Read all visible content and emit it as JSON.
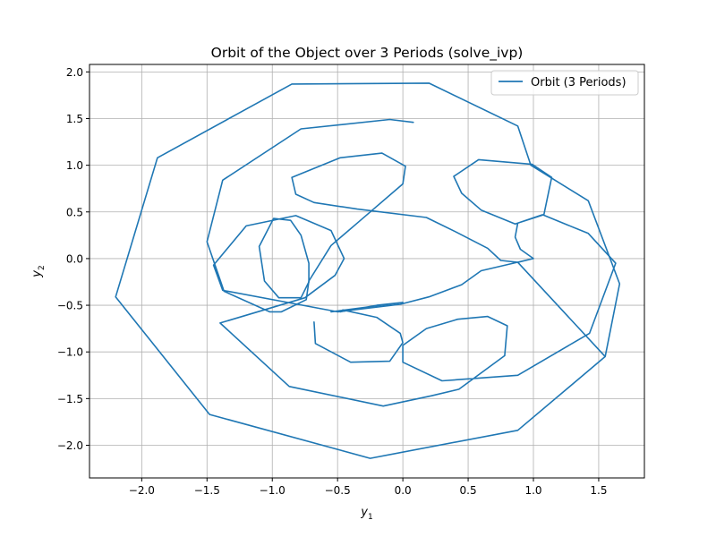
{
  "chart_data": {
    "type": "line",
    "title": "Orbit of the Object over 3 Periods (solve_ivp)",
    "xlabel": "y",
    "xlabel_sub": "1",
    "ylabel": "y",
    "ylabel_sub": "2",
    "xlim": [
      -2.4,
      1.85
    ],
    "ylim": [
      -2.35,
      2.08
    ],
    "xticks": [
      -2.0,
      -1.5,
      -1.0,
      -0.5,
      0.0,
      0.5,
      1.0,
      1.5
    ],
    "yticks": [
      -2.0,
      -1.5,
      -1.0,
      -0.5,
      0.0,
      0.5,
      1.0,
      1.5,
      2.0
    ],
    "xtick_labels": [
      "−2.0",
      "−1.5",
      "−1.0",
      "−0.5",
      "0.0",
      "0.5",
      "1.0",
      "1.5"
    ],
    "ytick_labels": [
      "−2.0",
      "−1.5",
      "−1.0",
      "−0.5",
      "0.0",
      "0.5",
      "1.0",
      "1.5",
      "2.0"
    ],
    "grid": true,
    "legend": "upper right",
    "series": [
      {
        "name": "Orbit (3 Periods)",
        "color": "#1f77b4",
        "points": [
          [
            1.0,
            0.0
          ],
          [
            0.6,
            -0.13
          ],
          [
            0.45,
            -0.28
          ],
          [
            0.2,
            -0.41
          ],
          [
            -0.02,
            -0.49
          ],
          [
            -0.5,
            -0.57
          ],
          [
            -1.38,
            -0.34
          ],
          [
            -1.45,
            -0.07
          ],
          [
            -1.2,
            0.35
          ],
          [
            -0.82,
            0.46
          ],
          [
            -0.55,
            0.3
          ],
          [
            -0.45,
            0.0
          ],
          [
            -0.52,
            -0.18
          ],
          [
            -0.75,
            -0.42
          ],
          [
            -1.4,
            -0.69
          ],
          [
            -0.87,
            -1.37
          ],
          [
            -0.15,
            -1.58
          ],
          [
            0.22,
            -1.47
          ],
          [
            0.43,
            -1.4
          ],
          [
            0.78,
            -1.04
          ],
          [
            0.8,
            -0.72
          ],
          [
            0.65,
            -0.62
          ],
          [
            0.42,
            -0.65
          ],
          [
            0.18,
            -0.75
          ],
          [
            0.0,
            -0.93
          ],
          [
            0.0,
            -1.11
          ],
          [
            0.3,
            -1.31
          ],
          [
            0.88,
            -1.25
          ],
          [
            1.43,
            -0.8
          ],
          [
            1.63,
            -0.05
          ],
          [
            1.42,
            0.27
          ],
          [
            1.07,
            0.47
          ],
          [
            0.86,
            0.37
          ],
          [
            0.6,
            0.52
          ],
          [
            0.45,
            0.7
          ],
          [
            0.39,
            0.88
          ],
          [
            0.58,
            1.06
          ],
          [
            0.99,
            1.01
          ],
          [
            1.14,
            0.87
          ],
          [
            1.08,
            0.47
          ],
          [
            0.88,
            0.38
          ],
          [
            0.86,
            0.23
          ],
          [
            0.9,
            0.1
          ],
          [
            1.0,
            0.0
          ],
          [
            0.88,
            -0.04
          ],
          [
            0.75,
            -0.02
          ],
          [
            0.65,
            0.11
          ],
          [
            0.4,
            0.29
          ],
          [
            0.18,
            0.44
          ],
          [
            -0.35,
            0.53
          ],
          [
            -0.68,
            0.6
          ],
          [
            -0.82,
            0.69
          ],
          [
            -0.85,
            0.87
          ],
          [
            -0.48,
            1.08
          ],
          [
            -0.16,
            1.13
          ],
          [
            0.02,
            0.99
          ],
          [
            0.0,
            0.8
          ],
          [
            -0.35,
            0.38
          ],
          [
            -0.55,
            0.14
          ],
          [
            -0.72,
            -0.24
          ],
          [
            -0.74,
            -0.44
          ],
          [
            -0.93,
            -0.57
          ],
          [
            -1.02,
            -0.57
          ],
          [
            -1.37,
            -0.35
          ],
          [
            -1.5,
            0.18
          ],
          [
            -1.38,
            0.84
          ],
          [
            -0.78,
            1.39
          ],
          [
            -0.1,
            1.49
          ],
          [
            0.08,
            1.46
          ]
        ]
      },
      {
        "name": "",
        "color": "#1f77b4",
        "points": [
          [
            0.88,
            -0.04
          ],
          [
            1.55,
            -1.05
          ],
          [
            1.66,
            -0.27
          ],
          [
            1.42,
            0.62
          ],
          [
            0.98,
            1.0
          ],
          [
            0.88,
            1.42
          ],
          [
            0.2,
            1.88
          ],
          [
            -0.85,
            1.87
          ],
          [
            -1.88,
            1.08
          ],
          [
            -2.2,
            -0.41
          ],
          [
            -1.48,
            -1.67
          ],
          [
            -0.25,
            -2.14
          ],
          [
            0.88,
            -1.84
          ],
          [
            1.55,
            -1.05
          ]
        ]
      },
      {
        "name": "",
        "color": "#1f77b4",
        "points": [
          [
            -0.48,
            -0.57
          ],
          [
            -0.2,
            -0.5
          ],
          [
            0.0,
            -0.47
          ],
          [
            0.0,
            -0.47
          ],
          [
            -0.55,
            -0.57
          ]
        ]
      },
      {
        "name": "",
        "color": "#1f77b4",
        "points": [
          [
            -0.68,
            -0.68
          ],
          [
            -0.67,
            -0.91
          ],
          [
            -0.4,
            -1.11
          ],
          [
            -0.1,
            -1.1
          ],
          [
            0.0,
            -0.9
          ],
          [
            -0.02,
            -0.8
          ],
          [
            -0.2,
            -0.63
          ],
          [
            -0.46,
            -0.55
          ]
        ]
      },
      {
        "name": "",
        "color": "#1f77b4",
        "points": [
          [
            -0.95,
            -0.42
          ],
          [
            -1.06,
            -0.24
          ],
          [
            -1.1,
            0.13
          ],
          [
            -0.99,
            0.43
          ],
          [
            -0.86,
            0.41
          ],
          [
            -0.78,
            0.25
          ],
          [
            -0.72,
            -0.05
          ],
          [
            -0.72,
            -0.25
          ],
          [
            -0.78,
            -0.42
          ],
          [
            -0.95,
            -0.42
          ]
        ]
      }
    ]
  }
}
